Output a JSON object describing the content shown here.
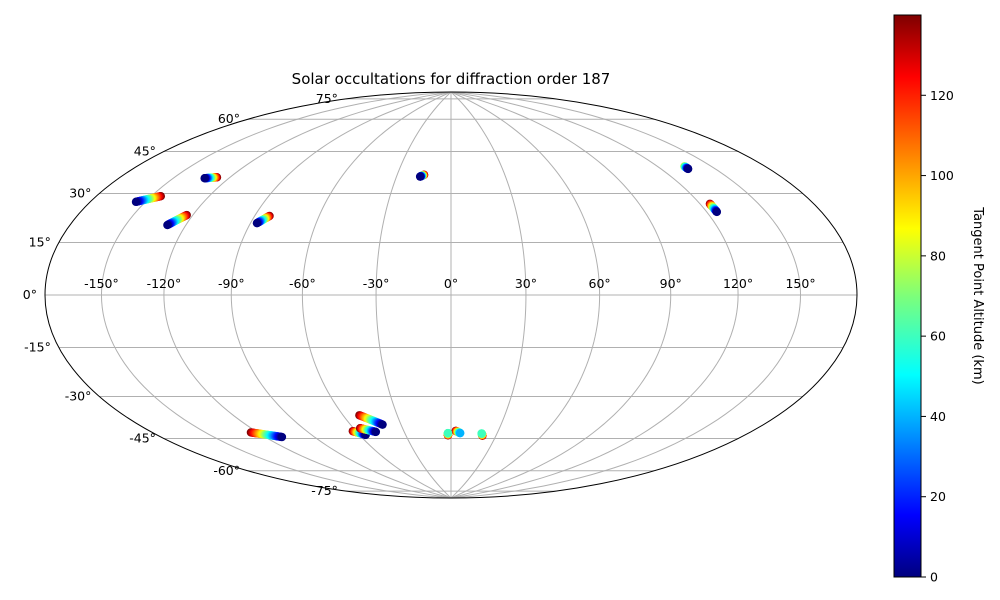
{
  "chart_data": {
    "type": "scatter",
    "projection": "hammer",
    "title": "Solar occultations for diffraction order 187",
    "grid": true,
    "lon_ticks": [
      -150,
      -120,
      -90,
      -60,
      -30,
      0,
      30,
      60,
      90,
      120,
      150
    ],
    "lat_ticks": [
      -75,
      -60,
      -45,
      -30,
      -15,
      0,
      15,
      30,
      45,
      60,
      75
    ],
    "lon_tick_labels": [
      "-150°",
      "-120°",
      "-90°",
      "-60°",
      "-30°",
      "0°",
      "30°",
      "60°",
      "90°",
      "120°",
      "150°"
    ],
    "lat_tick_labels": [
      "-75°",
      "-60°",
      "-45°",
      "-30°",
      "-15°",
      "0°",
      "15°",
      "30°",
      "45°",
      "60°",
      "75°"
    ],
    "colorbar": {
      "label": "Tangent Point Altitude (km)",
      "colormap": "jet",
      "range": [
        0,
        140
      ],
      "ticks": [
        0,
        20,
        40,
        60,
        80,
        100,
        120
      ],
      "tick_labels": [
        "0",
        "20",
        "40",
        "60",
        "80",
        "100",
        "120"
      ]
    },
    "series": [
      {
        "lon_start": -155,
        "lat_start": 30,
        "lon_end": -145,
        "lat_end": 33,
        "alt_start": 0,
        "alt_end": 140
      },
      {
        "lon_start": -133,
        "lat_start": 41,
        "lon_end": -127,
        "lat_end": 42,
        "alt_start": 0,
        "alt_end": 140
      },
      {
        "lon_start": -129,
        "lat_start": 24,
        "lon_end": -123,
        "lat_end": 28,
        "alt_start": 0,
        "alt_end": 140
      },
      {
        "lon_start": -87,
        "lat_start": 27,
        "lon_end": -83,
        "lat_end": 30,
        "alt_start": 0,
        "alt_end": 140
      },
      {
        "lon_start": -17,
        "lat_start": 48.6,
        "lon_end": -15,
        "lat_end": 49.4,
        "alt_start": 0,
        "alt_end": 140
      },
      {
        "lon_start": 135,
        "lat_start": 44.5,
        "lon_end": 135,
        "lat_end": 45.5,
        "alt_start": 0,
        "alt_end": 80
      },
      {
        "lon_start": 125,
        "lat_start": 29,
        "lon_end": 125,
        "lat_end": 32,
        "alt_start": 0,
        "alt_end": 140
      },
      {
        "lon_start": -124,
        "lat_start": -50.5,
        "lon_end": -110,
        "lat_end": -54,
        "alt_start": 140,
        "alt_end": 0
      },
      {
        "lon_start": -62,
        "lat_start": -55,
        "lon_end": -56,
        "lat_end": -57,
        "alt_start": 140,
        "alt_end": 0
      },
      {
        "lon_start": -56,
        "lat_start": -54,
        "lon_end": -48,
        "lat_end": -56,
        "alt_start": 140,
        "alt_end": 0
      },
      {
        "lon_start": -51,
        "lat_start": -48.5,
        "lon_end": -41,
        "lat_end": -53,
        "alt_start": 140,
        "alt_end": 0
      },
      {
        "lon_start": 3,
        "lat_start": -56.5,
        "lon_end": 6,
        "lat_end": -57.5,
        "alt_start": 140,
        "alt_end": 40
      },
      {
        "lon_start": -2,
        "lat_start": -57.5,
        "lon_end": -2,
        "lat_end": -58.5,
        "alt_start": 60,
        "alt_end": 140
      },
      {
        "lon_start": 20,
        "lat_start": -57.5,
        "lon_end": 21,
        "lat_end": -58.5,
        "alt_start": 60,
        "alt_end": 140
      }
    ]
  }
}
